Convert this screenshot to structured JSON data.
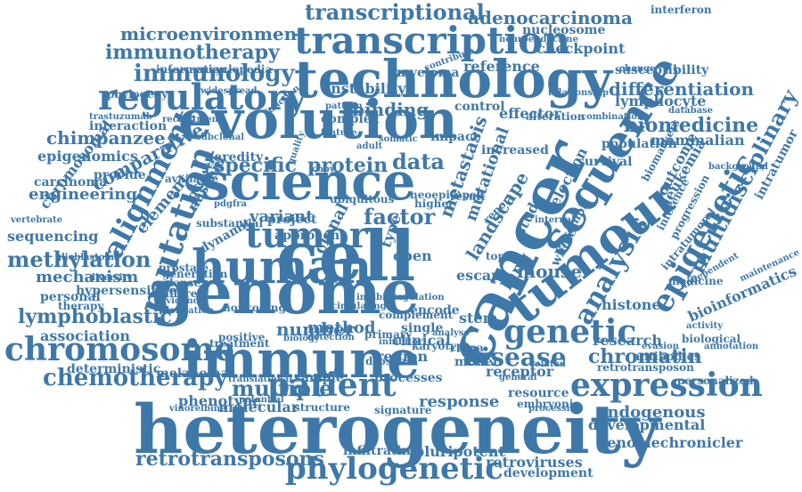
{
  "palette": {
    "word": "#3e78a8",
    "background": "#ffffff"
  },
  "words": [
    "heterogeneity",
    "genome",
    "cancer",
    "immune",
    "cell",
    "evolution",
    "technology",
    "science",
    "tumour",
    "human",
    "transcription",
    "sequence",
    "tumor",
    "mutation",
    "regulatory",
    "chromosome",
    "patient",
    "phylogenetic",
    "expression",
    "epigenetic",
    "alignment",
    "genetic",
    "disease",
    "immunology",
    "immunotherapy",
    "chemotherapy",
    "transcriptional",
    "adenocarcinoma",
    "multidisciplinary",
    "analysis",
    "microenvironment",
    "biomedicine",
    "differentiation",
    "chromatin",
    "methylation",
    "retrotransposons",
    "lymphoblastic",
    "multiple",
    "chimpanzee",
    "factor",
    "specific",
    "comparative",
    "mechanism",
    "protein",
    "data",
    "clonal",
    "number",
    "method",
    "variant",
    "lymphocyte",
    "susceptibility",
    "mammalian",
    "bioinformatics",
    "association",
    "endogenous",
    "developmental",
    "genomechronicler",
    "response",
    "retroviruses",
    "pluripotent",
    "development",
    "infiltrating",
    "sample",
    "processes",
    "molecular",
    "phenotype",
    "melanoma",
    "deterministic",
    "engineering",
    "epigenomics",
    "interaction",
    "leukemia",
    "research",
    "histone",
    "mouse",
    "lung",
    "landscape",
    "selection",
    "receptor",
    "resource",
    "embryonic",
    "antibodies",
    "retrotransposon",
    "biological",
    "personalized",
    "reference",
    "checkpoint",
    "nucleosome",
    "instability",
    "binding",
    "effector",
    "control",
    "myeloma",
    "impact",
    "clinical",
    "region",
    "open",
    "encode",
    "single",
    "escape",
    "stem",
    "model",
    "type",
    "sequencing",
    "chromosomal",
    "carcinoma",
    "vertebrate",
    "hypersensitive",
    "personal",
    "phylogeny",
    "information",
    "encyclopedia",
    "trastuzumab",
    "recruitment",
    "interferon",
    "neuroendocrine",
    "contribute",
    "population",
    "survival",
    "outcome",
    "biomarkers",
    "inference",
    "intratumor",
    "intratumoral",
    "medicine",
    "ensembl",
    "metastasis",
    "mutational",
    "study",
    "whole",
    "evasion",
    "activity",
    "annotation",
    "alteration",
    "increased",
    "complex",
    "pattern",
    "project",
    "approach",
    "nascent",
    "growth",
    "element",
    "heredity",
    "available",
    "provide",
    "dynamic",
    "generation",
    "relapse",
    "different",
    "prostate",
    "evidence",
    "therapy",
    "diversity",
    "glioblastoma",
    "elongation",
    "noncoding",
    "treatment",
    "positive",
    "biology",
    "detection",
    "primary",
    "inhibitor",
    "drosha",
    "structure",
    "signature",
    "vinorelbine",
    "potential",
    "translational",
    "complement",
    "karyotype",
    "ctdna",
    "related",
    "general",
    "processing",
    "ubiquitous",
    "neoepitopes",
    "higher",
    "result",
    "topic",
    "report",
    "adult",
    "somatic",
    "copy",
    "quality",
    "feature",
    "function",
    "change",
    "database",
    "background",
    "independent",
    "maintenance",
    "combination",
    "progression",
    "relationship",
    "widespread",
    "subclonal",
    "substantial",
    "circulating",
    "inhibition",
    "analyse",
    "regulation",
    "internal",
    "pdgfra",
    "tumoral",
    "genetics",
    "artificial",
    "version"
  ]
}
